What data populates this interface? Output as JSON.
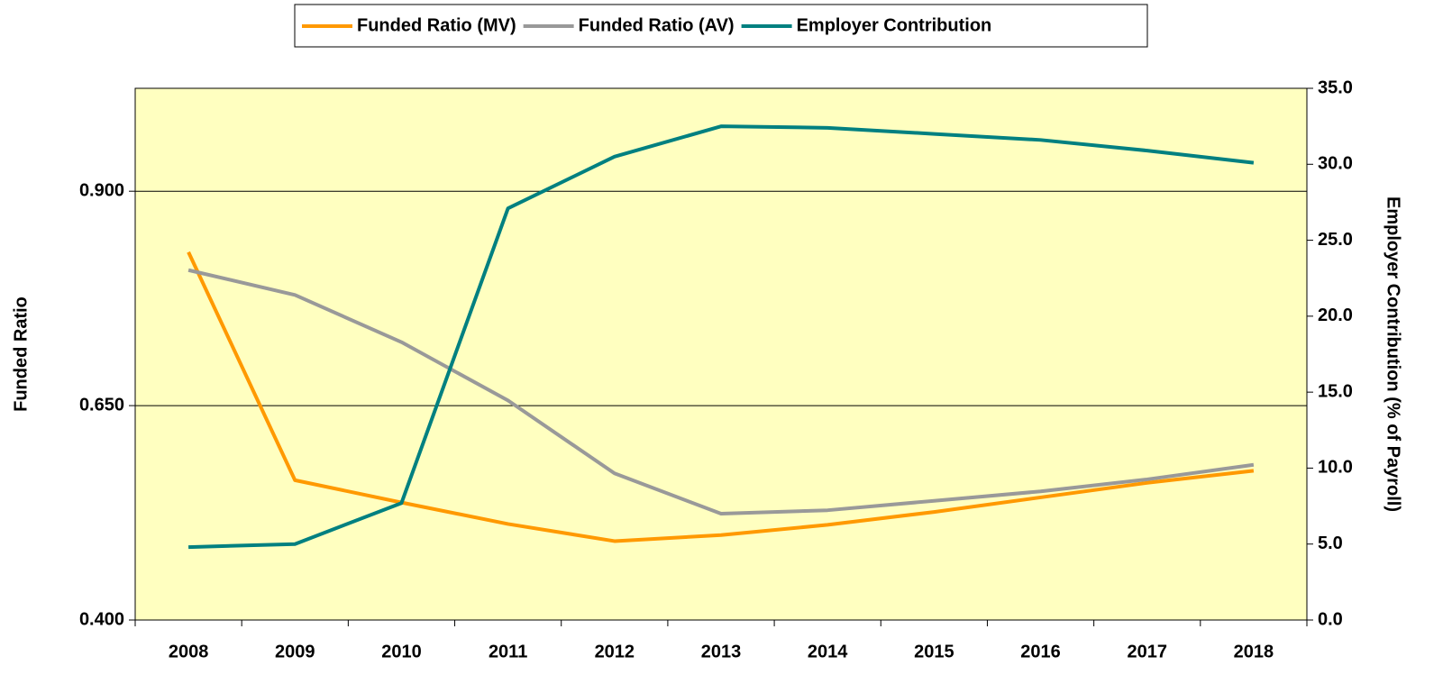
{
  "chart_data": {
    "type": "line",
    "y_label": "Funded Ratio",
    "y2_label": "Employer Contribution (% of Payroll)",
    "categories": [
      "2008",
      "2009",
      "2010",
      "2011",
      "2012",
      "2013",
      "2014",
      "2015",
      "2016",
      "2017",
      "2018"
    ],
    "series": [
      {
        "name": "Funded Ratio (MV)",
        "color": "#ff9900",
        "values": [
          0.829,
          0.563,
          0.537,
          0.512,
          0.492,
          0.499,
          0.511,
          0.526,
          0.543,
          0.56,
          0.574
        ]
      },
      {
        "name": "Funded Ratio (AV)",
        "color": "#999999",
        "values": [
          0.808,
          0.779,
          0.724,
          0.656,
          0.571,
          0.524,
          0.528,
          0.539,
          0.55,
          0.564,
          0.581
        ]
      },
      {
        "name": "Employer Contribution",
        "color": "#008080",
        "axis": "y2",
        "values": [
          4.8,
          5.0,
          7.7,
          27.1,
          30.5,
          32.5,
          32.4,
          32.0,
          31.6,
          30.9,
          30.1
        ]
      }
    ],
    "ylim": [
      0.4,
      1.02
    ],
    "yticks": [
      {
        "value": 0.4,
        "label": "0.400"
      },
      {
        "value": 0.65,
        "label": "0.650"
      },
      {
        "value": 0.9,
        "label": "0.900"
      }
    ],
    "y2lim": [
      0,
      35
    ],
    "y2ticks": [
      {
        "value": 0,
        "label": "0.0"
      },
      {
        "value": 5,
        "label": "5.0"
      },
      {
        "value": 10,
        "label": "10.0"
      },
      {
        "value": 15,
        "label": "15.0"
      },
      {
        "value": 20,
        "label": "20.0"
      },
      {
        "value": 25,
        "label": "25.0"
      },
      {
        "value": 30,
        "label": "30.0"
      },
      {
        "value": 35,
        "label": "35.0"
      }
    ],
    "grid": true,
    "legend": "top",
    "background": "#ffffc0"
  }
}
